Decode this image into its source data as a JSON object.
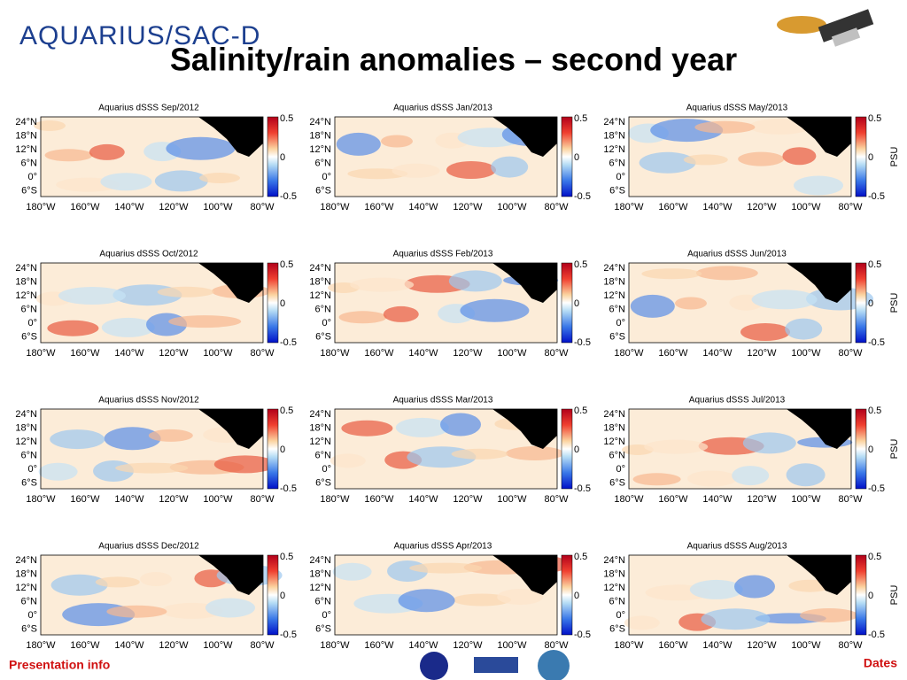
{
  "header": {
    "logo": "AQUARIUS/SAC-D",
    "title": "Salinity/rain anomalies – second year"
  },
  "axes": {
    "y_labels": [
      "24°N",
      "18°N",
      "12°N",
      "6°N",
      "0°",
      "6°S"
    ],
    "x_labels": [
      "180°W",
      "160°W",
      "140°W",
      "120°W",
      "100°W",
      "80°W"
    ],
    "colorbar_labels": [
      "0.5",
      "0",
      "-0.5"
    ],
    "unit": "PSU"
  },
  "panels": [
    {
      "title": "Aquarius dSSS   Sep/2012"
    },
    {
      "title": "Aquarius dSSS   Oct/2012"
    },
    {
      "title": "Aquarius dSSS   Nov/2012"
    },
    {
      "title": "Aquarius dSSS   Dec/2012"
    },
    {
      "title": "Aquarius dSSS   Jan/2013"
    },
    {
      "title": "Aquarius dSSS   Feb/2013"
    },
    {
      "title": "Aquarius dSSS   Mar/2013"
    },
    {
      "title": "Aquarius dSSS   Apr/2013"
    },
    {
      "title": "Aquarius dSSS   May/2013"
    },
    {
      "title": "Aquarius dSSS   Jun/2013"
    },
    {
      "title": "Aquarius dSSS   Jul/2013"
    },
    {
      "title": "Aquarius dSSS   Aug/2013"
    }
  ],
  "footer": {
    "left": "Presentation info",
    "right": "Dates"
  }
}
